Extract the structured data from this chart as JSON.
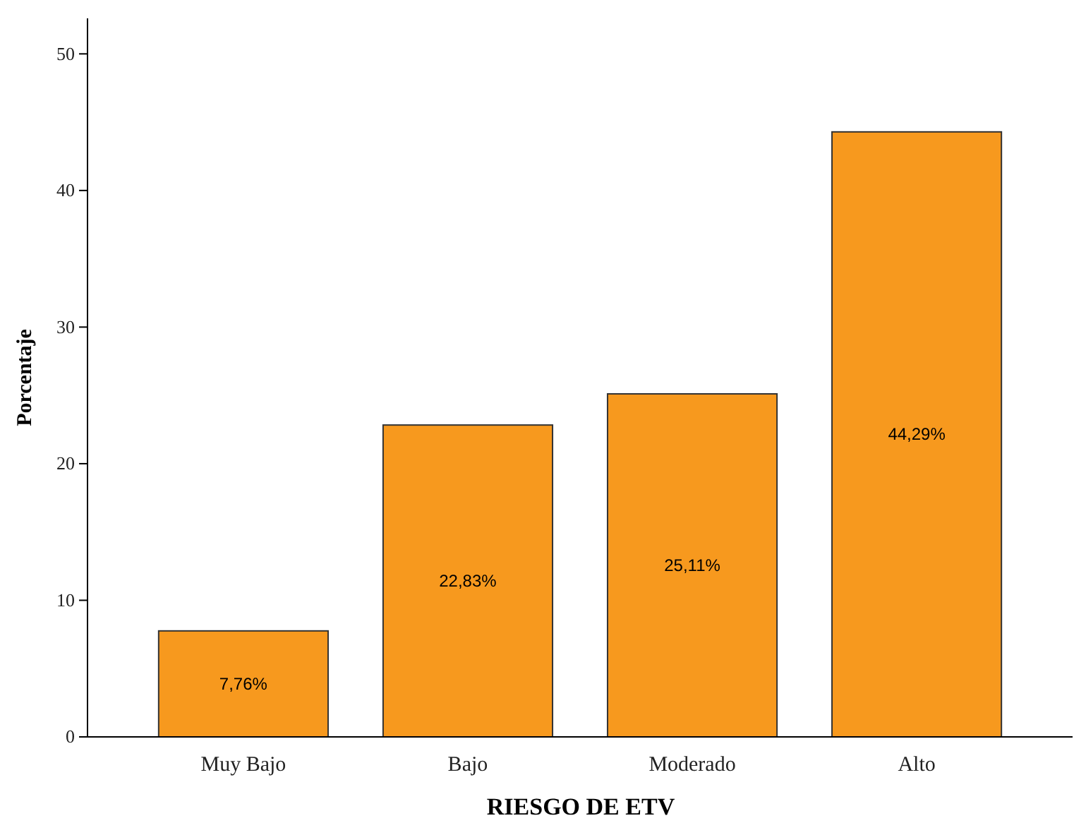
{
  "chart_data": {
    "type": "bar",
    "xlabel": "RIESGO DE ETV",
    "ylabel": "Porcentaje",
    "categories": [
      "Muy Bajo",
      "Bajo",
      "Moderado",
      "Alto"
    ],
    "values": [
      7.76,
      22.83,
      25.11,
      44.29
    ],
    "value_labels": [
      "7,76%",
      "22,83%",
      "25,11%",
      "44,29%"
    ],
    "color": "#f7991e",
    "ylim": [
      0,
      52.6
    ],
    "yticks": [
      0,
      10,
      20,
      30,
      40,
      50
    ],
    "grid": false
  }
}
